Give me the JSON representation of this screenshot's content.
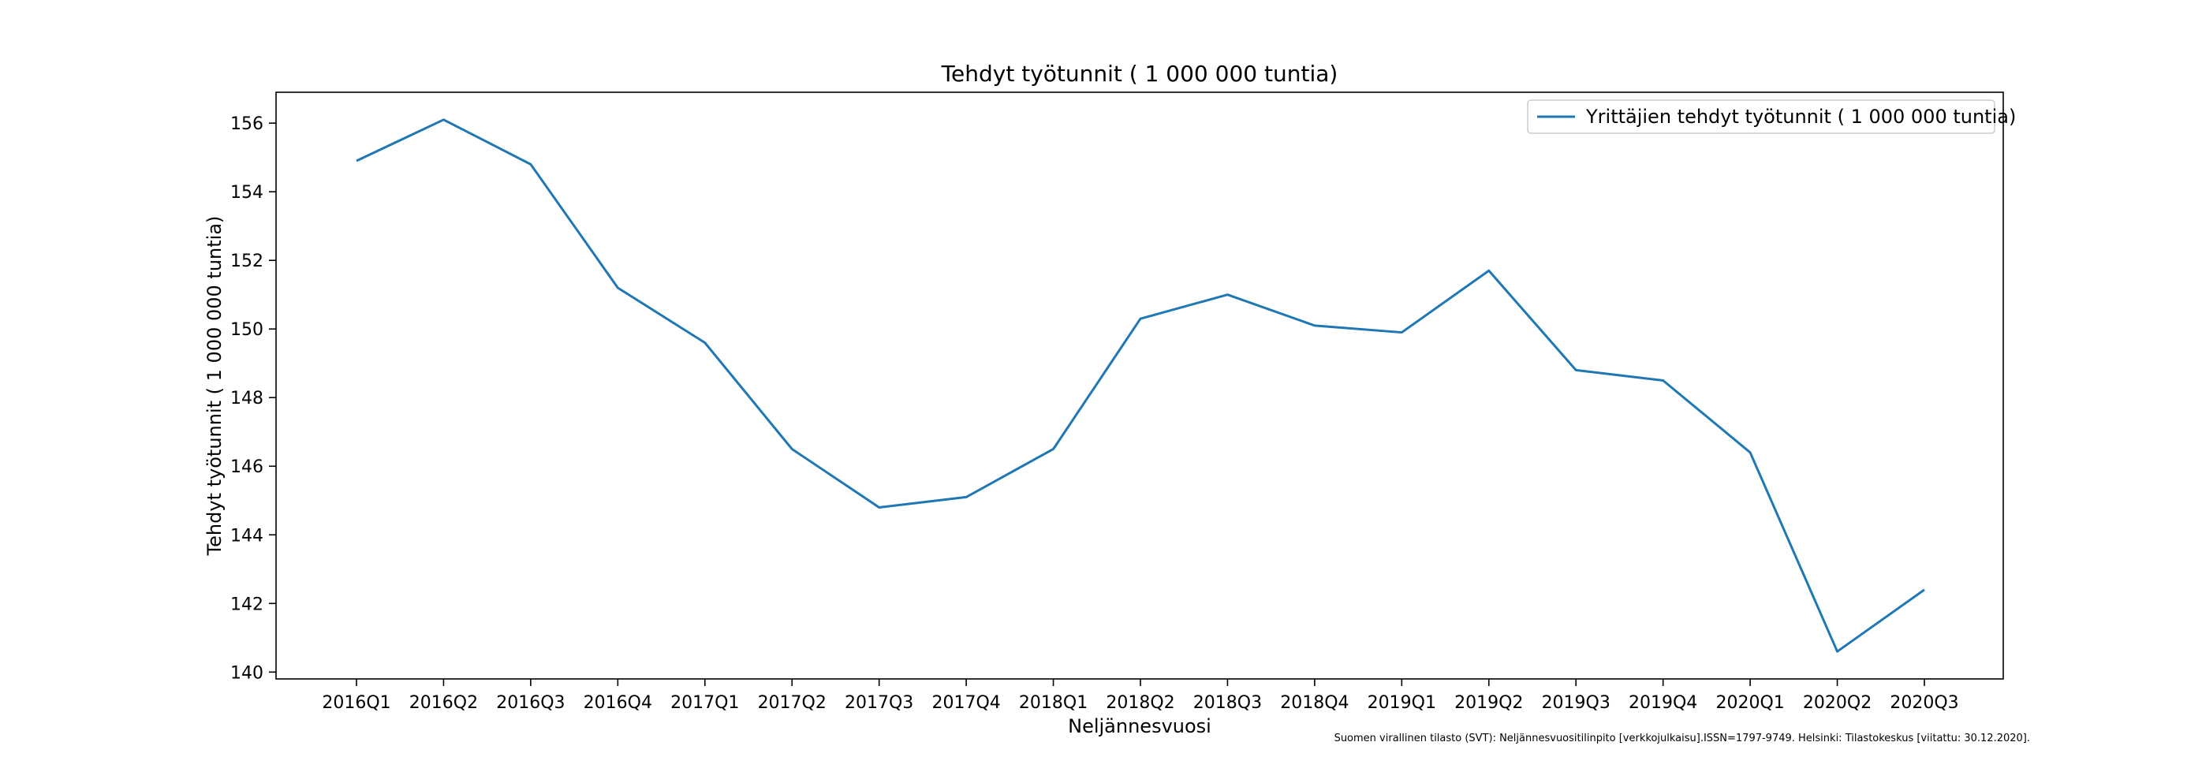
{
  "chart_data": {
    "type": "line",
    "title": "Tehdyt työtunnit ( 1 000 000 tuntia)",
    "xlabel": "Neljännesvuosi",
    "ylabel": "Tehdyt työtunnit ( 1 000 000 tuntia)",
    "categories": [
      "2016Q1",
      "2016Q2",
      "2016Q3",
      "2016Q4",
      "2017Q1",
      "2017Q2",
      "2017Q3",
      "2017Q4",
      "2018Q1",
      "2018Q2",
      "2018Q3",
      "2018Q4",
      "2019Q1",
      "2019Q2",
      "2019Q3",
      "2019Q4",
      "2020Q1",
      "2020Q2",
      "2020Q3"
    ],
    "series": [
      {
        "name": "Yrittäjien tehdyt työtunnit ( 1 000 000 tuntia)",
        "color": "#1f77b4",
        "values": [
          154.9,
          156.1,
          154.8,
          151.2,
          149.6,
          146.5,
          144.8,
          145.1,
          146.5,
          150.3,
          151.0,
          150.1,
          149.9,
          151.7,
          148.8,
          148.5,
          146.4,
          140.6,
          142.4
        ]
      }
    ],
    "ylim": [
      139.8,
      156.9
    ],
    "yticks": [
      140,
      142,
      144,
      146,
      148,
      150,
      152,
      154,
      156
    ],
    "grid": false,
    "legend_position": "upper right"
  },
  "source_note": "Suomen virallinen tilasto (SVT): Neljännesvuositilinpito [verkkojulkaisu].ISSN=1797-9749. Helsinki: Tilastokeskus [viitattu: 30.12.2020]."
}
